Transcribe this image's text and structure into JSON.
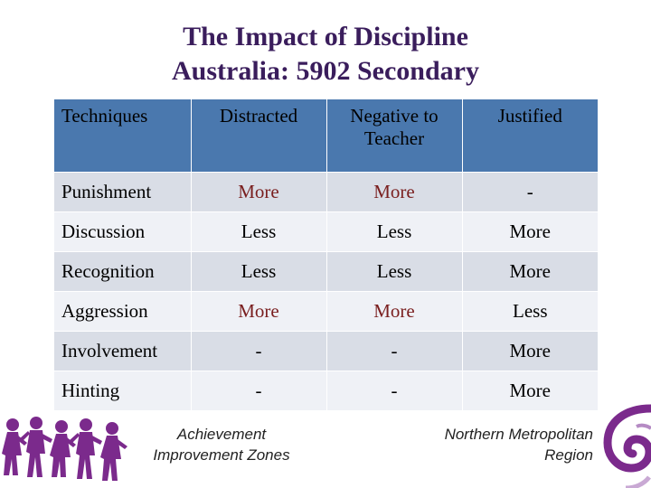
{
  "title": {
    "line1": "The Impact of Discipline",
    "line2": "Australia: 5902 Secondary"
  },
  "table": {
    "headers": [
      "Techniques",
      "Distracted",
      "Negative to Teacher",
      "Justified"
    ],
    "rows": [
      [
        "Punishment",
        "More",
        "More",
        "-"
      ],
      [
        "Discussion",
        "Less",
        "Less",
        "More"
      ],
      [
        "Recognition",
        "Less",
        "Less",
        "More"
      ],
      [
        "Aggression",
        "More",
        "More",
        "Less"
      ],
      [
        "Involvement",
        "-",
        "-",
        "More"
      ],
      [
        "Hinting",
        "-",
        "-",
        "More"
      ]
    ]
  },
  "footer": {
    "left_line1": "Achievement",
    "left_line2": "Improvement Zones",
    "right_line1": "Northern Metropolitan",
    "right_line2": "Region",
    "left_logo_icon": "children-silhouette-icon",
    "right_logo_icon": "purple-swirl-icon"
  },
  "colors": {
    "title": "#3a1d5c",
    "header_bg": "#4a78ae",
    "row_shade": "#d9dde6",
    "row_plain": "#eff1f6",
    "more_text": "#7a1f1f",
    "logo_purple": "#7b2a8c"
  }
}
